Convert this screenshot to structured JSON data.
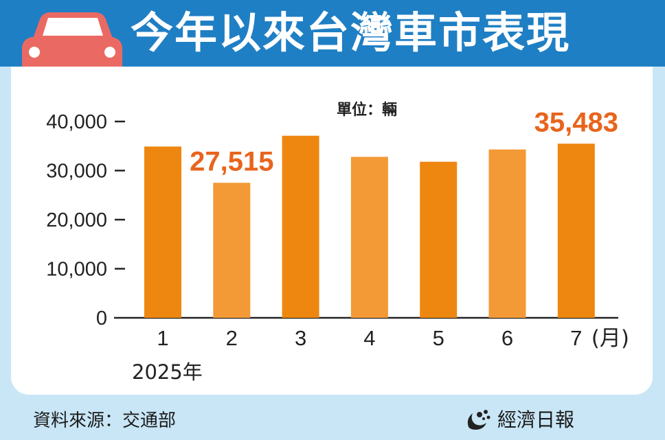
{
  "header": {
    "title": "今年以來台灣車市表現",
    "icon": "car-icon"
  },
  "chart_data": {
    "type": "bar",
    "title": "今年以來台灣車市表現",
    "unit_label": "單位：輛",
    "categories": [
      "1",
      "2",
      "3",
      "4",
      "5",
      "6",
      "7"
    ],
    "values": [
      34900,
      27515,
      37100,
      32800,
      31800,
      34300,
      35483
    ],
    "x_unit": "(月)",
    "year_label": "2025年",
    "yticks": [
      0,
      10000,
      20000,
      30000,
      40000
    ],
    "ytick_labels": [
      "0",
      "10,000",
      "20,000",
      "30,000",
      "40,000"
    ],
    "ylim": [
      0,
      40000
    ],
    "annotations": [
      {
        "category": "2",
        "text": "27,515"
      },
      {
        "category": "7",
        "text": "35,483"
      }
    ],
    "colors": {
      "dark": "#ee8710",
      "light": "#f39a36",
      "highlight_text": "#e8641c"
    },
    "grid": false
  },
  "footer": {
    "source": "資料來源：交通部",
    "brand": "經濟日報"
  },
  "colors": {
    "header": "#1f7fc4",
    "background": "#c9e6f6",
    "panel": "#ffffff"
  }
}
